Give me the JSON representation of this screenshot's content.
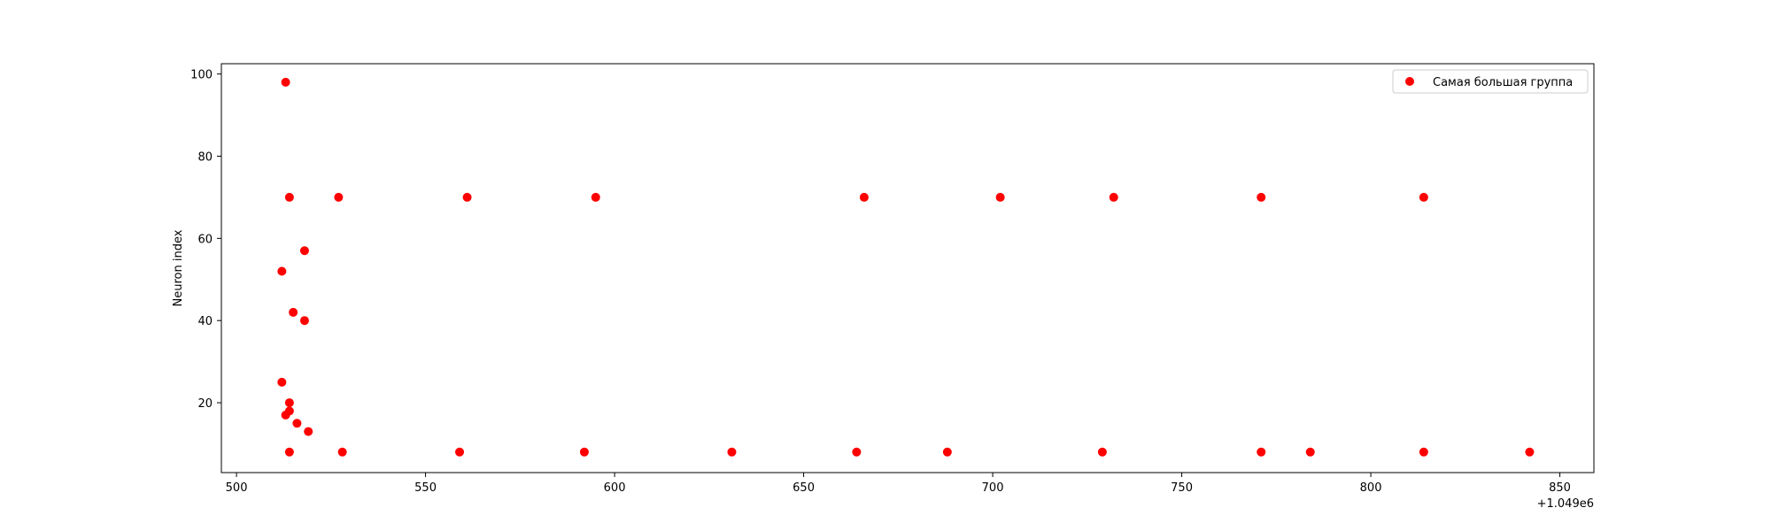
{
  "chart_data": {
    "type": "scatter",
    "title": "",
    "xlabel": "",
    "ylabel": "Neuron index",
    "x_offset_label": "+1.049e6",
    "x_offset": 1049000,
    "xlim": [
      1049496,
      1049859
    ],
    "ylim": [
      3,
      102.5
    ],
    "x_ticks": [
      500,
      550,
      600,
      650,
      700,
      750,
      800,
      850
    ],
    "y_ticks": [
      20,
      40,
      60,
      80,
      100
    ],
    "grid": false,
    "legend_position": "top-right",
    "series": [
      {
        "name": "Самая большая группа",
        "color": "#ff0000",
        "points": [
          {
            "x": 1049513,
            "y": 98
          },
          {
            "x": 1049514,
            "y": 70
          },
          {
            "x": 1049527,
            "y": 70
          },
          {
            "x": 1049561,
            "y": 70
          },
          {
            "x": 1049595,
            "y": 70
          },
          {
            "x": 1049666,
            "y": 70
          },
          {
            "x": 1049702,
            "y": 70
          },
          {
            "x": 1049732,
            "y": 70
          },
          {
            "x": 1049771,
            "y": 70
          },
          {
            "x": 1049814,
            "y": 70
          },
          {
            "x": 1049518,
            "y": 57
          },
          {
            "x": 1049512,
            "y": 52
          },
          {
            "x": 1049515,
            "y": 42
          },
          {
            "x": 1049518,
            "y": 40
          },
          {
            "x": 1049512,
            "y": 25
          },
          {
            "x": 1049514,
            "y": 20
          },
          {
            "x": 1049514,
            "y": 18
          },
          {
            "x": 1049513,
            "y": 17
          },
          {
            "x": 1049516,
            "y": 15
          },
          {
            "x": 1049519,
            "y": 13
          },
          {
            "x": 1049514,
            "y": 8
          },
          {
            "x": 1049528,
            "y": 8
          },
          {
            "x": 1049559,
            "y": 8
          },
          {
            "x": 1049592,
            "y": 8
          },
          {
            "x": 1049631,
            "y": 8
          },
          {
            "x": 1049664,
            "y": 8
          },
          {
            "x": 1049688,
            "y": 8
          },
          {
            "x": 1049729,
            "y": 8
          },
          {
            "x": 1049771,
            "y": 8
          },
          {
            "x": 1049784,
            "y": 8
          },
          {
            "x": 1049814,
            "y": 8
          },
          {
            "x": 1049842,
            "y": 8
          }
        ]
      }
    ]
  }
}
